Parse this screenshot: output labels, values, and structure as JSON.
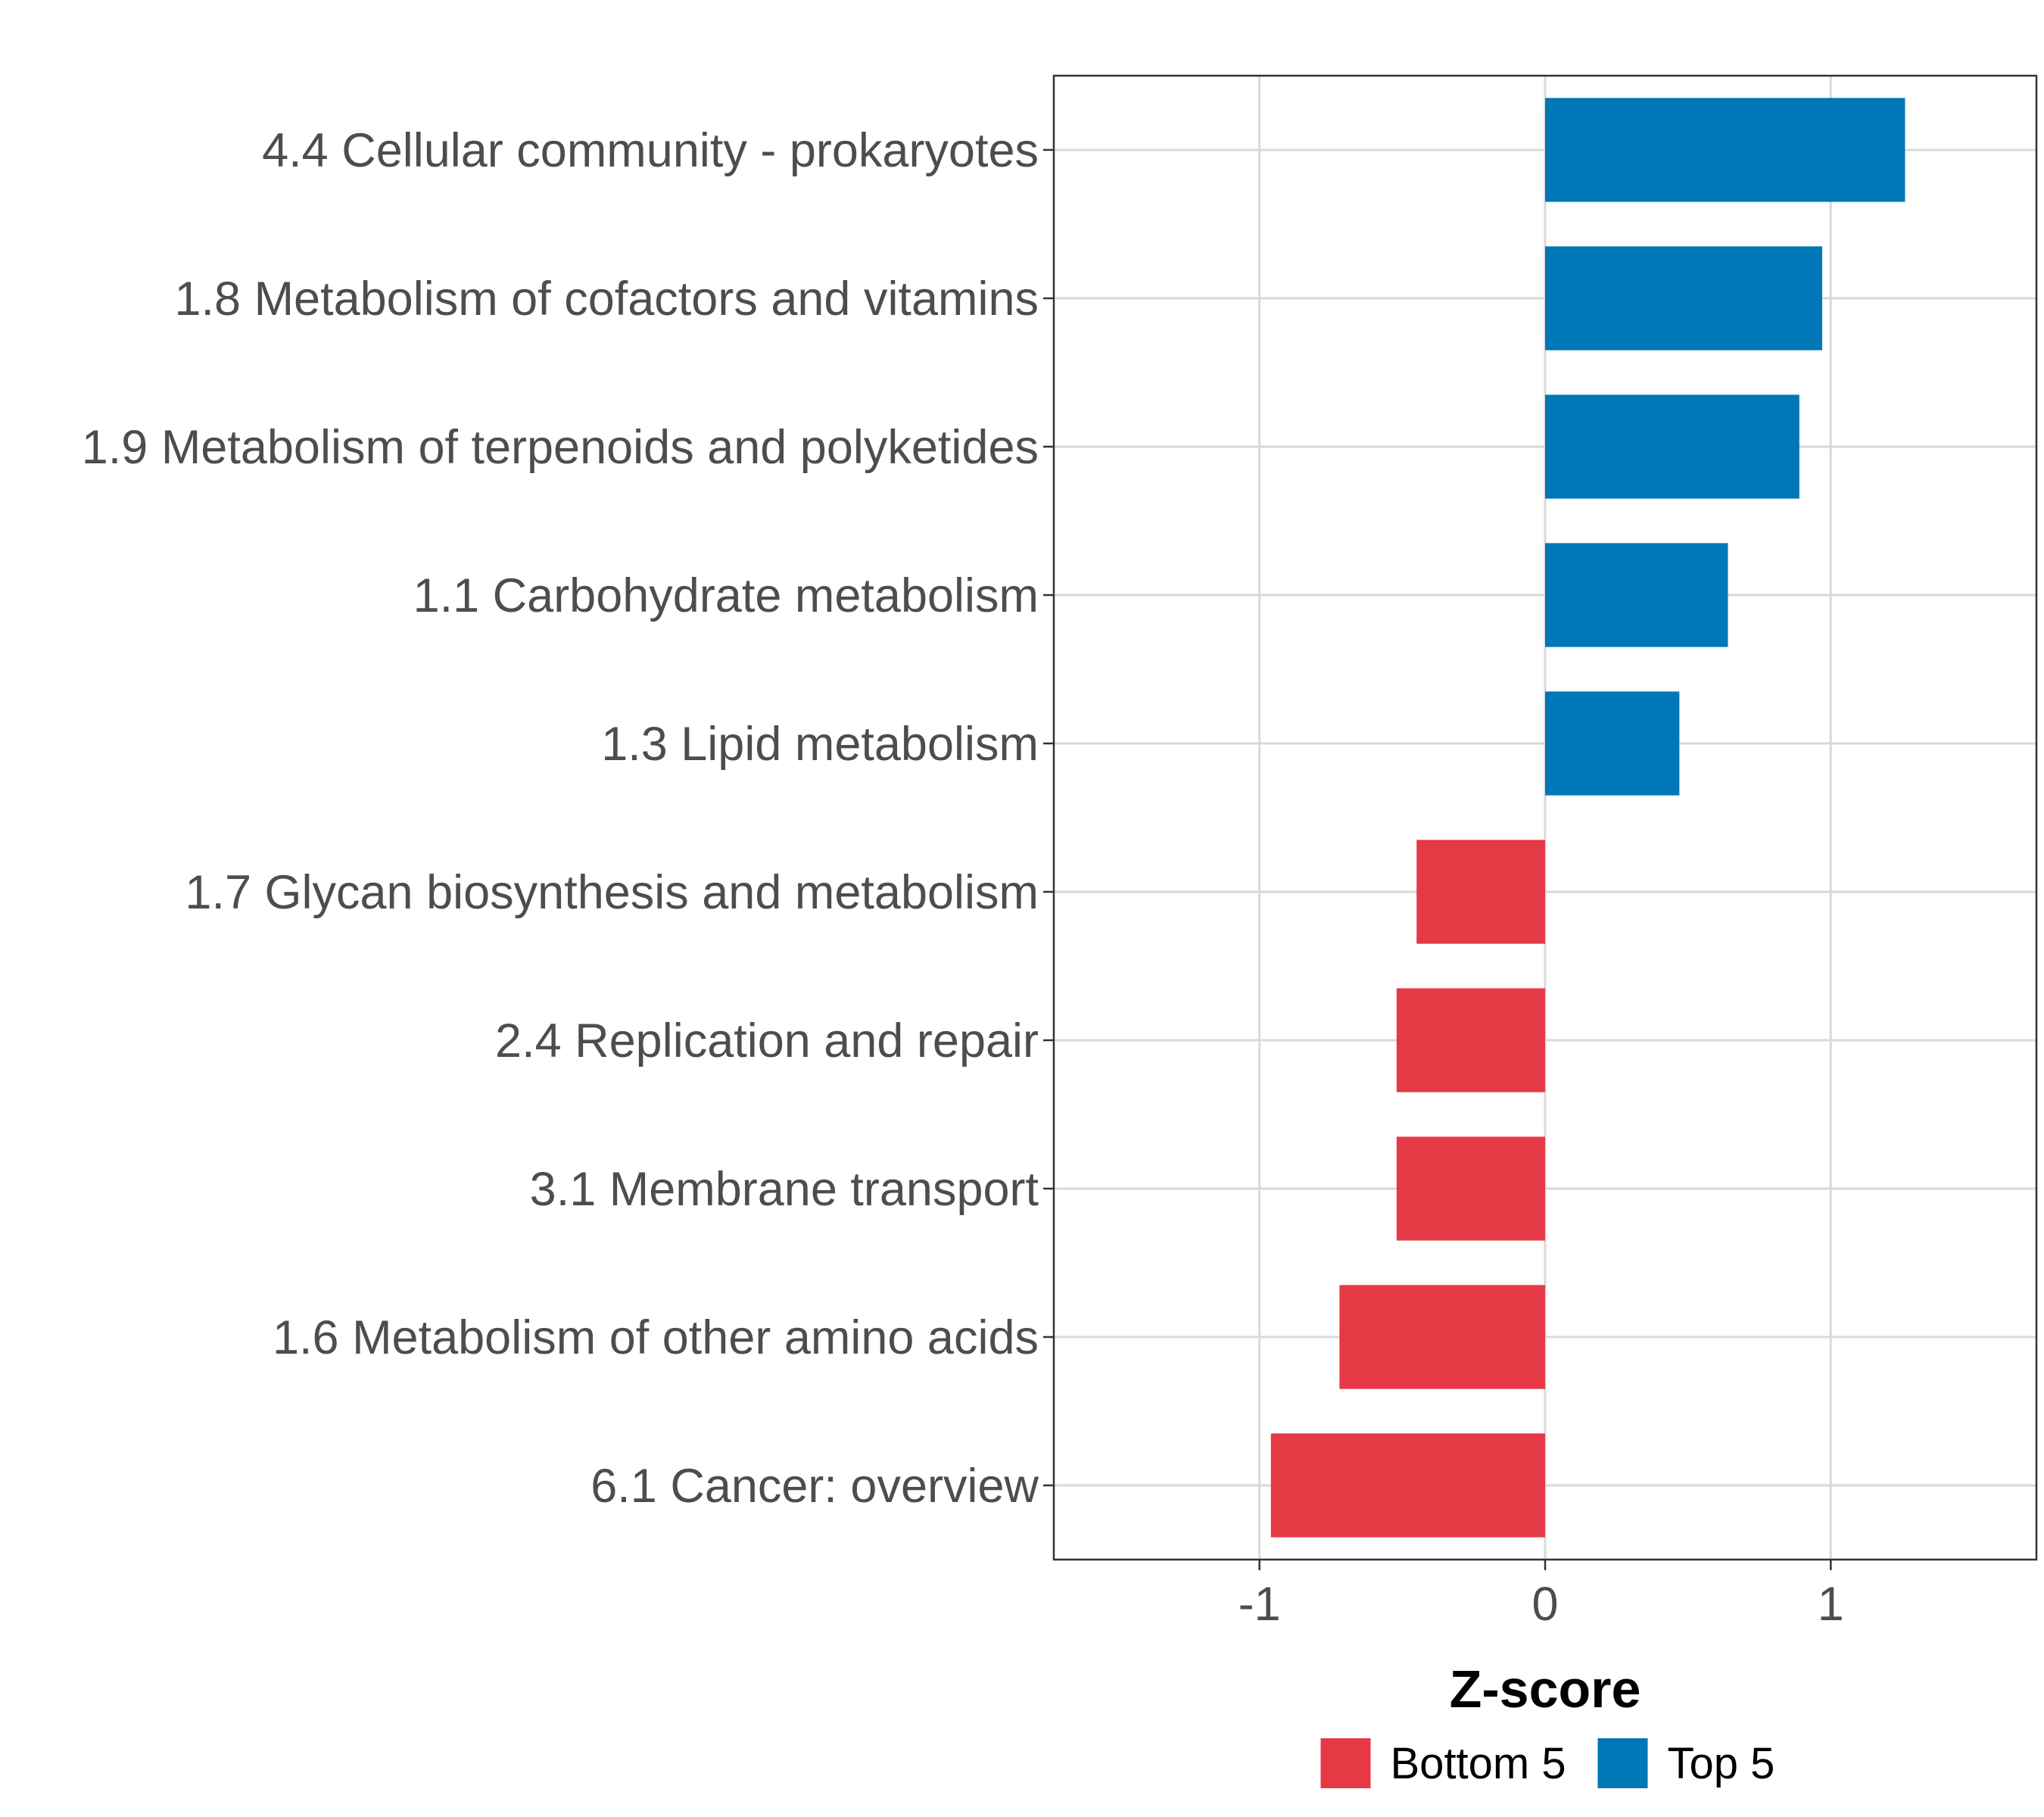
{
  "chart_data": {
    "type": "bar",
    "orientation": "horizontal",
    "title": "",
    "xlabel": "Z-score",
    "ylabel": "",
    "xlim": [
      -1.72,
      1.72
    ],
    "xticks": [
      -1,
      0,
      1
    ],
    "xtick_labels": [
      "-1",
      "0",
      "1"
    ],
    "grid": true,
    "categories": [
      "4.4 Cellular community - prokaryotes",
      "1.8 Metabolism of cofactors and vitamins",
      "1.9 Metabolism of terpenoids and polyketides",
      "1.1 Carbohydrate metabolism",
      "1.3 Lipid metabolism",
      "1.7 Glycan biosynthesis and metabolism",
      "2.4 Replication and repair",
      "3.1 Membrane transport",
      "1.6 Metabolism of other amino acids",
      "6.1 Cancer: overview"
    ],
    "values": [
      1.26,
      0.97,
      0.89,
      0.64,
      0.47,
      -0.45,
      -0.52,
      -0.52,
      -0.72,
      -0.96
    ],
    "groups": [
      "Top 5",
      "Top 5",
      "Top 5",
      "Top 5",
      "Top 5",
      "Bottom 5",
      "Bottom 5",
      "Bottom 5",
      "Bottom 5",
      "Bottom 5"
    ],
    "legend": {
      "position": "bottom",
      "entries": [
        {
          "label": "Bottom 5",
          "color": "#e63946"
        },
        {
          "label": "Top 5",
          "color": "#0077b6"
        }
      ]
    }
  }
}
